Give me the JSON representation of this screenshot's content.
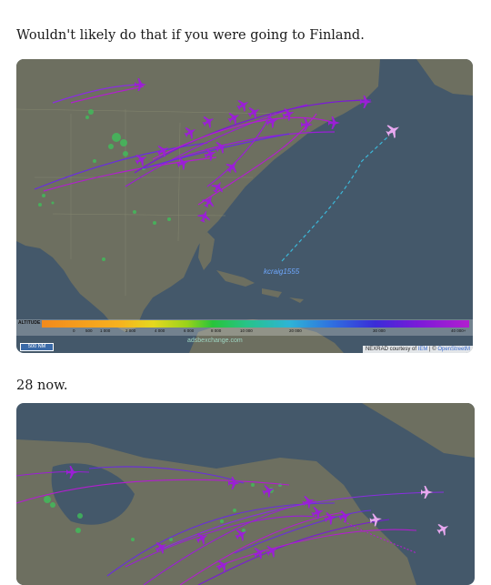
{
  "post1": {
    "text": "Wouldn't likely do that if you were going to Finland."
  },
  "post2": {
    "text": "28 now."
  },
  "map1": {
    "callsign_label": "kcraig1555",
    "legend": {
      "title": "ALTITUDE (ft)",
      "ticks": [
        "0",
        "500",
        "1 000",
        "2 000",
        "4 000",
        "6 000",
        "8 000",
        "10 000",
        "20 000",
        "30 000",
        "40 000+"
      ]
    },
    "watermark": "adsbexchange.com",
    "scale_label": "500 NM",
    "credit": {
      "prefix": "NEXRAD courtesy of ",
      "link1": "IEM",
      "sep": " | © ",
      "link2": "OpenStreetM"
    }
  },
  "colors": {
    "track_purple": "#9b1fd6",
    "track_violet": "#6a2ce0",
    "plane_pink": "#e8a8f0",
    "ocean": "#44586a",
    "land": "#6d6f60"
  }
}
